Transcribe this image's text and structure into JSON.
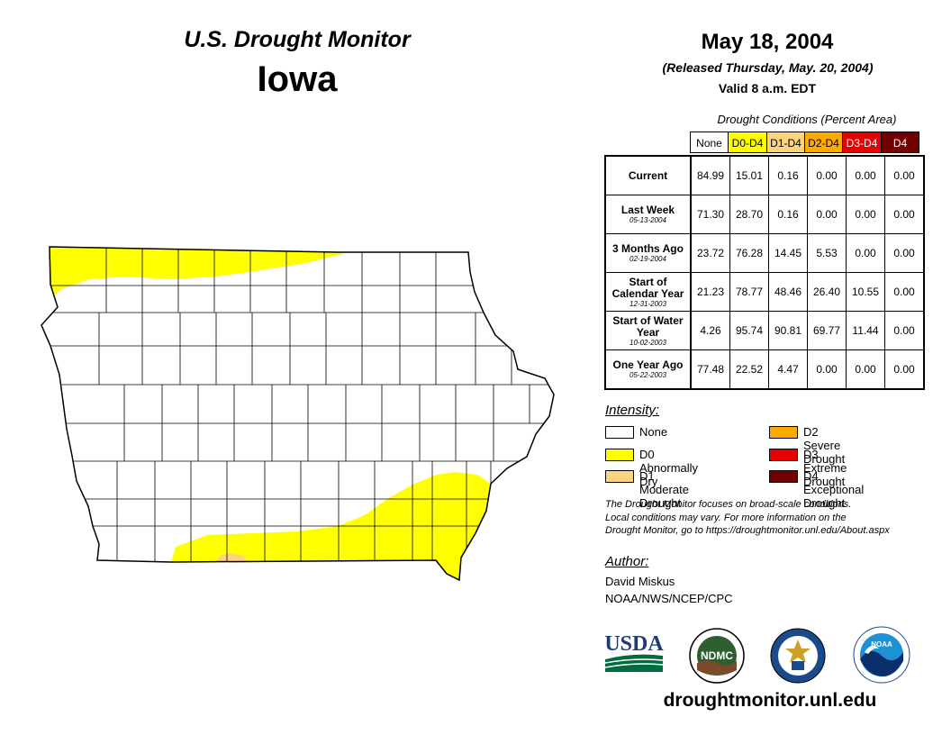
{
  "header": {
    "title": "U.S. Drought Monitor",
    "state": "Iowa",
    "date": "May 18, 2004",
    "released": "(Released Thursday, May. 20, 2004)",
    "valid": "Valid 8 a.m. EDT"
  },
  "table": {
    "caption": "Drought Conditions (Percent Area)",
    "columns": [
      "None",
      "D0-D4",
      "D1-D4",
      "D2-D4",
      "D3-D4",
      "D4"
    ],
    "column_colors": [
      "#ffffff",
      "#ffff00",
      "#fcd37f",
      "#ffaa00",
      "#e60000",
      "#730000"
    ],
    "rows": [
      {
        "label": "Current",
        "date": "",
        "values": [
          "84.99",
          "15.01",
          "0.16",
          "0.00",
          "0.00",
          "0.00"
        ]
      },
      {
        "label": "Last Week",
        "date": "05-13-2004",
        "values": [
          "71.30",
          "28.70",
          "0.16",
          "0.00",
          "0.00",
          "0.00"
        ]
      },
      {
        "label": "3 Months Ago",
        "date": "02-19-2004",
        "values": [
          "23.72",
          "76.28",
          "14.45",
          "5.53",
          "0.00",
          "0.00"
        ]
      },
      {
        "label": "Start of Calendar Year",
        "date": "12-31-2003",
        "values": [
          "21.23",
          "78.77",
          "48.46",
          "26.40",
          "10.55",
          "0.00"
        ]
      },
      {
        "label": "Start of Water Year",
        "date": "10-02-2003",
        "values": [
          "4.26",
          "95.74",
          "90.81",
          "69.77",
          "11.44",
          "0.00"
        ]
      },
      {
        "label": "One Year Ago",
        "date": "05-22-2003",
        "values": [
          "77.48",
          "22.52",
          "4.47",
          "0.00",
          "0.00",
          "0.00"
        ]
      }
    ]
  },
  "legend": {
    "title": "Intensity:",
    "items": [
      {
        "label": "None",
        "color": "#ffffff"
      },
      {
        "label": "D0 Abnormally Dry",
        "color": "#ffff00"
      },
      {
        "label": "D1 Moderate Drought",
        "color": "#fcd37f"
      },
      {
        "label": "D2 Severe Drought",
        "color": "#ffaa00"
      },
      {
        "label": "D3 Extreme Drought",
        "color": "#e60000"
      },
      {
        "label": "D4 Exceptional Drought",
        "color": "#730000"
      }
    ]
  },
  "disclaimer": {
    "line1": "The Drought Monitor focuses on broad-scale conditions.",
    "line2": "Local conditions may vary. For more information on the",
    "line3": "Drought Monitor, go to https://droughtmonitor.unl.edu/About.aspx"
  },
  "author": {
    "heading": "Author:",
    "name": "David Miskus",
    "org": "NOAA/NWS/NCEP/CPC"
  },
  "logos": {
    "usda": "USDA",
    "ndmc": "NDMC",
    "noaa": "NOAA"
  },
  "footer": {
    "website": "droughtmonitor.unl.edu"
  }
}
